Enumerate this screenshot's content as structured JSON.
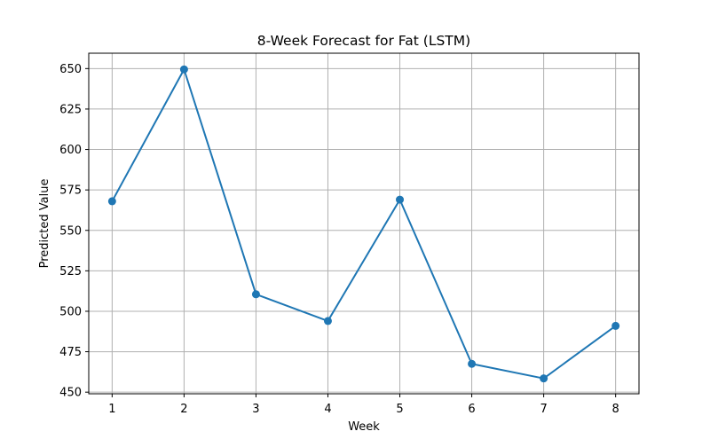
{
  "chart_data": {
    "type": "line",
    "title": "8-Week Forecast for Fat (LSTM)",
    "xlabel": "Week",
    "ylabel": "Predicted Value",
    "x": [
      1,
      2,
      3,
      4,
      5,
      6,
      7,
      8
    ],
    "series": [
      {
        "values": [
          568,
          649.5,
          510.5,
          494,
          569,
          467.5,
          458.5,
          491
        ]
      }
    ],
    "xlim": [
      0.675,
      8.325
    ],
    "ylim": [
      449,
      659.5
    ],
    "xticks": [
      "1",
      "2",
      "3",
      "4",
      "5",
      "6",
      "7",
      "8"
    ],
    "yticks": [
      "450",
      "475",
      "500",
      "525",
      "550",
      "575",
      "600",
      "625",
      "650"
    ],
    "grid": true,
    "markers": "circle",
    "line_color": "#1f77b4",
    "grid_color": "#b0b0b0"
  }
}
